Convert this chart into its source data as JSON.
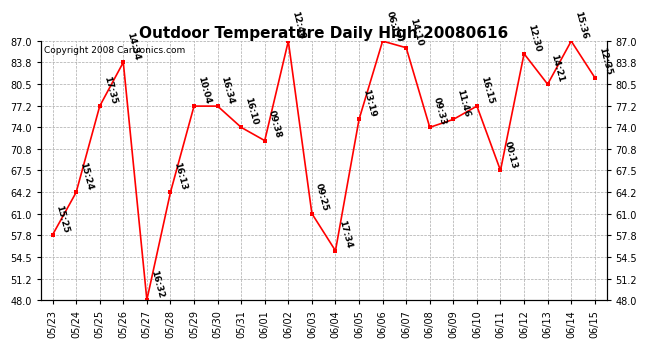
{
  "title": "Outdoor Temperature Daily High 20080616",
  "copyright": "Copyright 2008 Cartronics.com",
  "dates": [
    "05/23",
    "05/24",
    "05/25",
    "05/26",
    "05/27",
    "05/28",
    "05/29",
    "05/30",
    "05/31",
    "06/01",
    "06/02",
    "06/03",
    "06/04",
    "06/05",
    "06/06",
    "06/07",
    "06/08",
    "06/09",
    "06/10",
    "06/11",
    "06/12",
    "06/13",
    "06/14",
    "06/15"
  ],
  "values": [
    57.8,
    64.2,
    77.2,
    83.8,
    48.0,
    64.2,
    77.2,
    77.2,
    74.0,
    72.0,
    87.0,
    61.0,
    55.4,
    75.2,
    87.0,
    86.0,
    74.0,
    75.2,
    77.2,
    67.5,
    85.1,
    80.5,
    87.0,
    81.5
  ],
  "labels": [
    "15:25",
    "15:24",
    "17:35",
    "14:34",
    "16:32",
    "16:13",
    "10:04",
    "16:34",
    "16:10",
    "09:38",
    "12:48",
    "09:25",
    "17:34",
    "13:19",
    "06:17",
    "14:10",
    "09:33",
    "11:46",
    "16:15",
    "00:13",
    "12:30",
    "14:21",
    "15:36",
    "12:35"
  ],
  "ylim": [
    48.0,
    87.0
  ],
  "yticks": [
    48.0,
    51.2,
    54.5,
    57.8,
    61.0,
    64.2,
    67.5,
    70.8,
    74.0,
    77.2,
    80.5,
    83.8,
    87.0
  ],
  "line_color": "red",
  "marker_color": "red",
  "bg_color": "white",
  "grid_color": "#aaaaaa",
  "title_fontsize": 11,
  "label_fontsize": 6.5,
  "tick_fontsize": 7,
  "copyright_fontsize": 6.5
}
